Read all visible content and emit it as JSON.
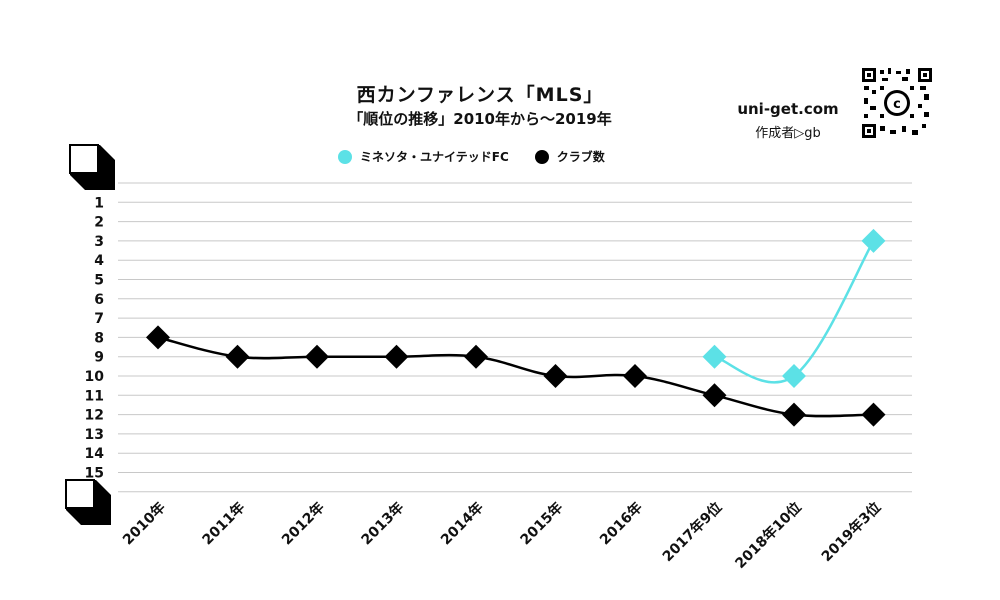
{
  "header": {
    "title": "西カンファレンス「MLS」",
    "subtitle": "「順位の推移」2010年から～2019年"
  },
  "brand": {
    "site": "uni-get.com",
    "author": "作成者▷gb"
  },
  "chart_data": {
    "type": "line",
    "title": "西カンファレンス「MLS」",
    "subtitle": "「順位の推移」2010年から～2019年",
    "xlabel": "",
    "ylabel": "",
    "y_inverted": true,
    "ylim": [
      0,
      15
    ],
    "y_ticks": [
      "1",
      "2",
      "3",
      "4",
      "5",
      "6",
      "7",
      "8",
      "9",
      "10",
      "11",
      "12",
      "13",
      "14",
      "15"
    ],
    "categories": [
      "2010年",
      "2011年",
      "2012年",
      "2013年",
      "2014年",
      "2015年",
      "2016年",
      "2017年9位",
      "2018年10位",
      "2019年3位"
    ],
    "legend_position": "top-center",
    "grid": true,
    "series": [
      {
        "name": "ミネソタ・ユナイテッドFC",
        "color": "#5ce1e6",
        "values": [
          null,
          null,
          null,
          null,
          null,
          null,
          null,
          9,
          10,
          3
        ]
      },
      {
        "name": "クラブ数",
        "color": "#000000",
        "values": [
          8,
          9,
          9,
          9,
          9,
          10,
          10,
          11,
          12,
          12
        ]
      }
    ]
  },
  "colors": {
    "accent": "#5ce1e6",
    "line": "#000000",
    "grid": "#cccccc"
  }
}
